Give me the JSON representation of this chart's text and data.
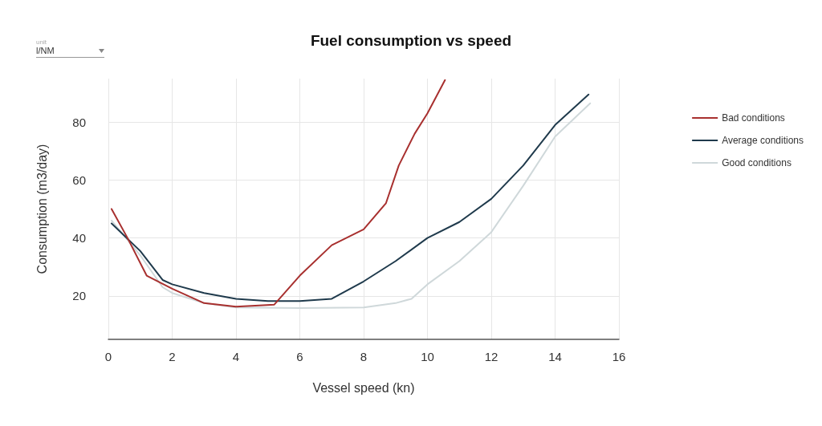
{
  "chart_data": {
    "type": "line",
    "title": "Fuel consumption vs speed",
    "xlabel": "Vessel speed (kn)",
    "ylabel": "Consumption (m3/day)",
    "annotations": [
      "unit",
      "l/NM"
    ],
    "xlim": [
      0,
      16
    ],
    "xticks": [
      0,
      2,
      4,
      6,
      8,
      10,
      12,
      14,
      16
    ],
    "ylim": [
      5,
      95
    ],
    "yticks": [
      20,
      40,
      60,
      80
    ],
    "grid": true,
    "legend": "right",
    "marker": "none",
    "line_style": "solid",
    "series": [
      {
        "name": "Bad conditions",
        "color": "#a8302f",
        "x": [
          0.1,
          0.6,
          1.2,
          2,
          3,
          4,
          5.2,
          6,
          7,
          8,
          8.7,
          9.1,
          9.6,
          10,
          10.55
        ],
        "values": [
          50,
          40,
          27,
          22.5,
          17.5,
          16.3,
          17,
          27,
          37.5,
          43,
          52,
          65,
          76,
          83,
          94.5
        ]
      },
      {
        "name": "Average conditions",
        "color": "#1f3a4c",
        "x": [
          0.1,
          1,
          1.7,
          2,
          3,
          4,
          5,
          6,
          7,
          8,
          9,
          10,
          11,
          12,
          13,
          14,
          15.05
        ],
        "values": [
          45,
          35.5,
          25.5,
          24,
          21,
          19,
          18.2,
          18.2,
          19,
          25,
          32,
          40,
          45.5,
          53.5,
          65,
          79,
          89.5
        ]
      },
      {
        "name": "Good conditions",
        "color": "#cfd8da",
        "x": [
          0.1,
          1,
          1.7,
          2,
          3,
          4,
          6,
          8,
          9,
          9.5,
          10,
          11,
          12,
          13,
          14,
          15.1
        ],
        "values": [
          46,
          34,
          23,
          21,
          17.5,
          16,
          15.8,
          16,
          17.5,
          19,
          24,
          32,
          42,
          58,
          75,
          86.5
        ]
      }
    ]
  }
}
